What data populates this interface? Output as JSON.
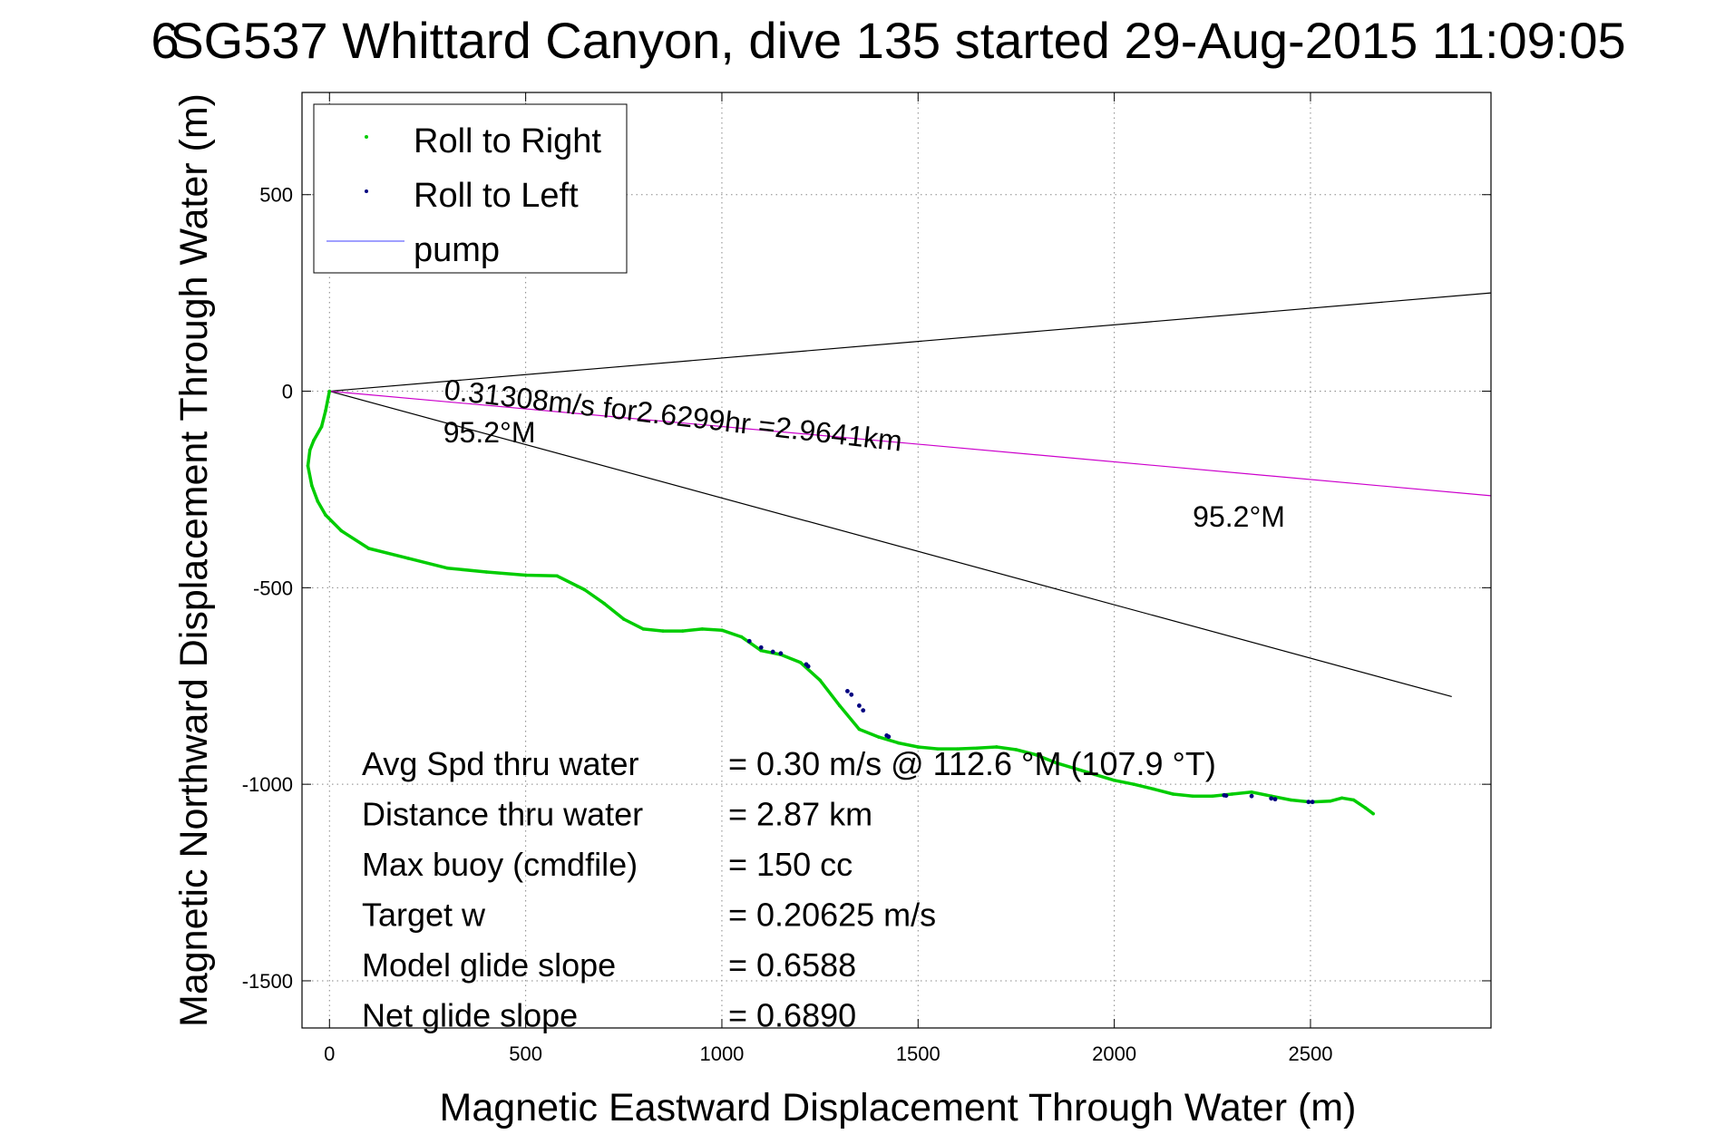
{
  "chart_data": {
    "type": "line",
    "title": "SG537 Whittard Canyon, dive 135 started 29-Aug-2015 11:09:05",
    "title_overlap_glyphs": "6",
    "xlabel": "Magnetic Eastward Displacement Through Water (m)",
    "ylabel": "Magnetic Northward Displacement Through Water (m)",
    "xlim": [
      -70,
      2960
    ],
    "ylim": [
      -1620,
      760
    ],
    "x_ticks": [
      0,
      500,
      1000,
      1500,
      2000,
      2500
    ],
    "x_tick_labels": [
      "0",
      "500",
      "1000",
      "1500",
      "2000",
      "2500"
    ],
    "y_ticks": [
      500,
      0,
      -500,
      -1000,
      -1500
    ],
    "y_tick_labels": [
      "500",
      "0",
      "-500",
      "-1000",
      "-1500"
    ],
    "grid": true,
    "grid_style": "dotted",
    "legend_position": "top-left",
    "legend": [
      {
        "label": "Roll to Right",
        "marker": "dot",
        "color": "#00cc00"
      },
      {
        "label": "Roll to Left",
        "marker": "dot",
        "color": "#000080"
      },
      {
        "label": "pump",
        "marker": "line",
        "color": "#8080ff"
      }
    ],
    "series": [
      {
        "name": "Roll to Right",
        "color": "#00cc00",
        "x": [
          0,
          -10,
          -20,
          -40,
          -50,
          -55,
          -45,
          -30,
          -10,
          30,
          100,
          200,
          300,
          400,
          500,
          580,
          650,
          700,
          750,
          800,
          850,
          900,
          950,
          1000,
          1050,
          1100,
          1150,
          1200,
          1250,
          1300,
          1350,
          1400,
          1450,
          1500,
          1550,
          1600,
          1650,
          1700,
          1750,
          1800,
          1850,
          1900,
          1950,
          2000,
          2050,
          2100,
          2150,
          2200,
          2250,
          2300,
          2350,
          2400,
          2450,
          2500,
          2550,
          2580,
          2610,
          2640,
          2660
        ],
        "y": [
          0,
          -50,
          -90,
          -125,
          -150,
          -190,
          -240,
          -280,
          -315,
          -355,
          -400,
          -425,
          -450,
          -460,
          -468,
          -470,
          -505,
          -540,
          -580,
          -605,
          -610,
          -610,
          -605,
          -608,
          -625,
          -660,
          -670,
          -690,
          -735,
          -800,
          -860,
          -880,
          -895,
          -905,
          -910,
          -910,
          -908,
          -905,
          -912,
          -925,
          -945,
          -960,
          -975,
          -990,
          -1000,
          -1012,
          -1025,
          -1030,
          -1030,
          -1025,
          -1020,
          -1030,
          -1040,
          -1045,
          -1043,
          -1035,
          -1040,
          -1060,
          -1075
        ]
      },
      {
        "name": "Roll to Left",
        "color": "#000080",
        "x": [
          1070,
          1100,
          1130,
          1150,
          1215,
          1220,
          1320,
          1330,
          1350,
          1360,
          1420,
          1425,
          2280,
          2285,
          2350,
          2400,
          2410,
          2495,
          2505
        ],
        "y": [
          -636,
          -652,
          -663,
          -667,
          -695,
          -700,
          -763,
          -772,
          -800,
          -812,
          -876,
          -879,
          -1028,
          -1029,
          -1030,
          -1036,
          -1038,
          -1045,
          -1045
        ]
      }
    ],
    "reference_lines": [
      {
        "x": [
          0,
          2960
        ],
        "y": [
          0,
          250
        ],
        "color": "#000000"
      },
      {
        "x": [
          0,
          2860
        ],
        "y": [
          0,
          -777
        ],
        "color": "#000000"
      },
      {
        "x": [
          0,
          2960
        ],
        "y": [
          0,
          -266
        ],
        "color": "#cc00cc"
      }
    ],
    "annotations": [
      {
        "id": "vel",
        "text": "0.31308m/s for2.6299hr =2.9641km",
        "at": [
          290,
          -20
        ],
        "rotation_deg": 6.5
      },
      {
        "id": "dir1",
        "text": "95.2°M",
        "at": [
          290,
          -130
        ],
        "rotation_deg": 0
      },
      {
        "id": "dir2",
        "text": "95.2°M",
        "at": [
          2200,
          -345
        ],
        "rotation_deg": 0
      }
    ],
    "stats": [
      {
        "label": "Avg Spd thru water",
        "value": "=  0.30 m/s @ 112.6 °M (107.9 °T)"
      },
      {
        "label": "Distance thru water",
        "value": "=  2.87 km"
      },
      {
        "label": "Max buoy (cmdfile)",
        "value": "= 150 cc"
      },
      {
        "label": "Target w",
        "value": "= 0.20625 m/s"
      },
      {
        "label": "Model glide slope",
        "value": "= 0.6588"
      },
      {
        "label": "Net glide slope",
        "value": "= 0.6890"
      }
    ]
  }
}
